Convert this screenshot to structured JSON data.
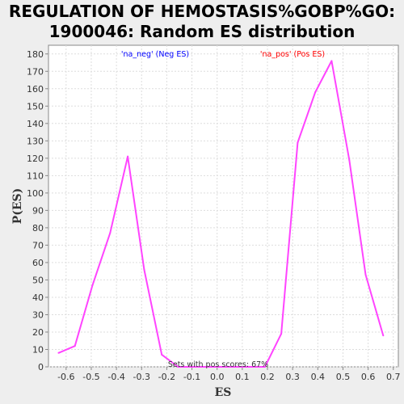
{
  "chart_data": {
    "type": "line",
    "title": "REGULATION OF HEMOSTASIS%GOBP%GO:\n1900046: Random ES distribution",
    "xlabel": "ES",
    "ylabel": "P(ES)",
    "xlim": [
      -0.67,
      0.72
    ],
    "ylim": [
      0,
      185
    ],
    "xticks": [
      -0.6,
      -0.5,
      -0.4,
      -0.3,
      -0.2,
      -0.1,
      0.0,
      0.1,
      0.2,
      0.3,
      0.4,
      0.5,
      0.6,
      0.7
    ],
    "xtick_labels": [
      "-0.6",
      "-0.5",
      "-0.4",
      "-0.3",
      "-0.2",
      "-0.1",
      "0.0",
      "0.1",
      "0.2",
      "0.3",
      "0.4",
      "0.5",
      "0.6",
      "0.7"
    ],
    "yticks": [
      0,
      10,
      20,
      30,
      40,
      50,
      60,
      70,
      80,
      90,
      100,
      110,
      120,
      130,
      140,
      150,
      160,
      170,
      180
    ],
    "grid": true,
    "legend": [
      {
        "label": "'na_neg' (Neg ES)",
        "color": "#0000ff"
      },
      {
        "label": "'na_pos' (Pos ES)",
        "color": "#ff0000"
      }
    ],
    "annotation": "Sets with pos scores: 67%",
    "line_color": "#ff44ff",
    "series": [
      {
        "x": [
          -0.63,
          -0.565,
          -0.495,
          -0.425,
          -0.355,
          -0.29,
          -0.22,
          -0.155,
          -0.09,
          -0.02,
          0.05,
          0.12,
          0.19,
          0.255,
          0.32,
          0.39,
          0.455,
          0.525,
          0.59,
          0.66
        ],
        "values": [
          8,
          12,
          47,
          77,
          121,
          56,
          7,
          0,
          0,
          0,
          0,
          0,
          0,
          19,
          129,
          158,
          176,
          119,
          53,
          18
        ]
      }
    ]
  }
}
